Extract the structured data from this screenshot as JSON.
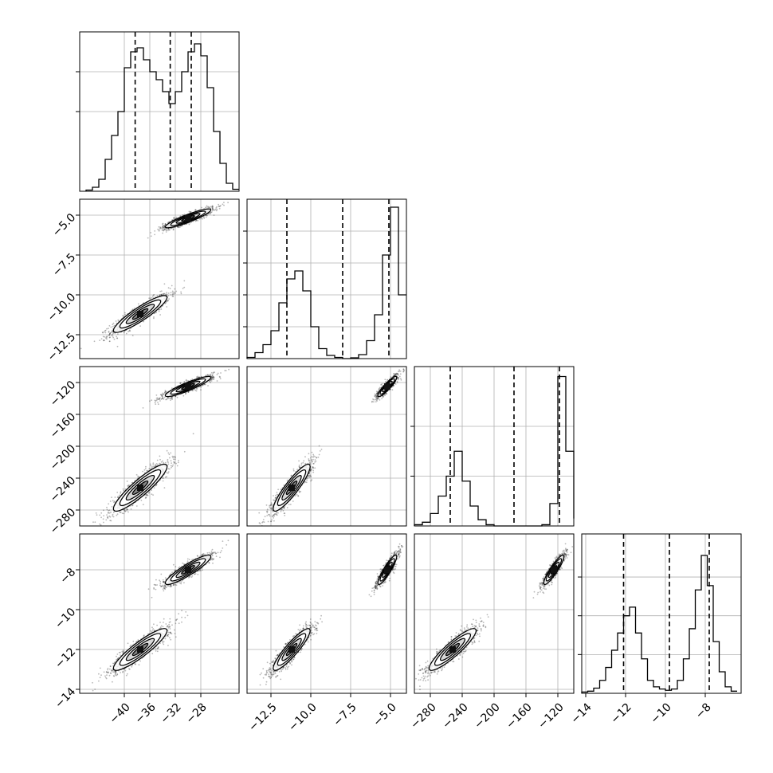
{
  "chart_data": {
    "type": "corner",
    "params": [
      {
        "range": [
          -47,
          -22
        ],
        "ticks": [
          -40,
          -36,
          -32,
          -28
        ],
        "tick_labels": [
          "−40",
          "−36",
          "−32",
          "−28"
        ],
        "quantiles": [
          -38.3,
          -32.8,
          -29.5
        ]
      },
      {
        "range": [
          -14.0,
          -4.0
        ],
        "ticks": [
          -12.5,
          -10.0,
          -7.5,
          -5.0
        ],
        "tick_labels": [
          "−12.5",
          "−10.0",
          "−7.5",
          "−5.0"
        ],
        "quantiles": [
          -11.5,
          -8.0,
          -5.1
        ]
      },
      {
        "range": [
          -300,
          -100
        ],
        "ticks": [
          -280,
          -240,
          -200,
          -160,
          -120
        ],
        "tick_labels": [
          "−280",
          "−240",
          "−200",
          "−160",
          "−120"
        ],
        "quantiles": [
          -255,
          -175,
          -118
        ]
      },
      {
        "range": [
          -14.2,
          -6.2
        ],
        "ticks": [
          -14,
          -12,
          -10,
          -8
        ],
        "tick_labels": [
          "−14",
          "−12",
          "−10",
          "−8"
        ],
        "quantiles": [
          -12.1,
          -9.8,
          -7.8
        ]
      }
    ],
    "histograms": [
      {
        "bins": [
          -46,
          -45,
          -44,
          -43,
          -42,
          -41,
          -40,
          -39,
          -38,
          -37,
          -36,
          -35,
          -34,
          -33,
          -32,
          -31,
          -30,
          -29,
          -28,
          -27,
          -26,
          -25,
          -24,
          -23
        ],
        "counts": [
          0.3,
          1,
          3,
          8,
          14,
          20,
          31,
          35,
          36,
          33,
          30,
          28,
          25,
          22,
          25,
          30,
          35,
          37,
          34,
          26,
          15,
          7,
          2,
          0.5
        ],
        "ylim": [
          0,
          40
        ],
        "yticks": [
          20,
          30
        ]
      },
      {
        "bins": [
          -14,
          -13.5,
          -13,
          -12.5,
          -12,
          -11.5,
          -11,
          -10.5,
          -10,
          -9.5,
          -9,
          -8.5,
          -8,
          -7.5,
          -7,
          -6.5,
          -6,
          -5.5,
          -5,
          -4.5
        ],
        "counts": [
          0.3,
          1.5,
          3.5,
          7,
          14,
          20,
          22,
          17,
          8,
          2.5,
          0.8,
          0.3,
          0,
          0.2,
          1,
          4.5,
          11,
          26,
          38,
          16
        ],
        "ylim": [
          0,
          40
        ],
        "yticks": [
          8,
          16,
          24,
          32
        ]
      },
      {
        "bins": [
          -300,
          -290,
          -280,
          -270,
          -260,
          -250,
          -240,
          -230,
          -220,
          -210,
          -200,
          -190,
          -180,
          -170,
          -160,
          -150,
          -140,
          -130,
          -120,
          -110,
          -100
        ],
        "counts": [
          0.5,
          1.5,
          5,
          12,
          20,
          30,
          18,
          8,
          2.5,
          0.5,
          0,
          0,
          0,
          0,
          0,
          0,
          0.5,
          9,
          60,
          30,
          3
        ],
        "ylim": [
          0,
          64
        ],
        "yticks": [
          20,
          40
        ]
      },
      {
        "bins": [
          -14.2,
          -13.9,
          -13.6,
          -13.3,
          -13.0,
          -12.7,
          -12.4,
          -12.1,
          -11.8,
          -11.5,
          -11.2,
          -10.9,
          -10.6,
          -10.3,
          -10.0,
          -9.7,
          -9.4,
          -9.1,
          -8.8,
          -8.5,
          -8.2,
          -7.9,
          -7.6,
          -7.3,
          -7.0,
          -6.7
        ],
        "counts": [
          0.3,
          0.5,
          1.2,
          3,
          6,
          10,
          14,
          18,
          20,
          14,
          8,
          3,
          1.5,
          1,
          0.7,
          1,
          3,
          8,
          15,
          24,
          32,
          25,
          12,
          5,
          1.5,
          0.5
        ],
        "ylim": [
          0,
          37
        ],
        "yticks": [
          9,
          18,
          27
        ]
      }
    ],
    "modes": [
      {
        "weight": 0.5,
        "mean": [
          -37.5,
          -11.2,
          -252,
          -12.0
        ],
        "sd": [
          2.0,
          0.55,
          14,
          0.5
        ]
      },
      {
        "weight": 0.5,
        "mean": [
          -30.0,
          -5.2,
          -125,
          -8.0
        ],
        "sd": [
          1.7,
          0.28,
          6,
          0.35
        ]
      }
    ]
  }
}
